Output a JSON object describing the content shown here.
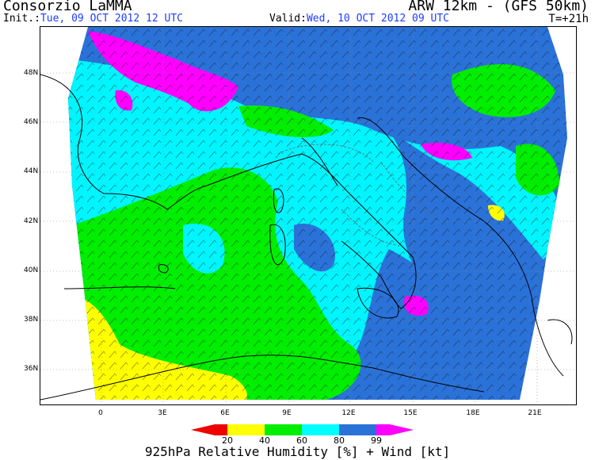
{
  "header": {
    "source": "Consorzio LaMMA",
    "model": "ARW 12km - (GFS 50km)",
    "init_label": "Init.:",
    "init_value": "Tue, 09 OCT 2012  12 UTC",
    "valid_label": "Valid:",
    "valid_value": "Wed, 10 OCT 2012  09 UTC",
    "forecast_step": "T=+21h"
  },
  "map": {
    "region": "Central Mediterranean / Italy",
    "lat_labels": [
      "48N",
      "46N",
      "44N",
      "42N",
      "40N",
      "38N",
      "36N"
    ],
    "lon_labels": [
      "0",
      "3E",
      "6E",
      "9E",
      "12E",
      "15E",
      "18E",
      "21E"
    ],
    "field": "relative humidity",
    "overlay": "wind barbs"
  },
  "legend": {
    "ticks": [
      "20",
      "40",
      "60",
      "80",
      "99"
    ],
    "colors": [
      "#ee0000",
      "#ffff00",
      "#00ee00",
      "#00ffff",
      "#2a72d8",
      "#ff00ff"
    ]
  },
  "caption": "925hPa Relative Humidity [%] + Wind [kt]"
}
